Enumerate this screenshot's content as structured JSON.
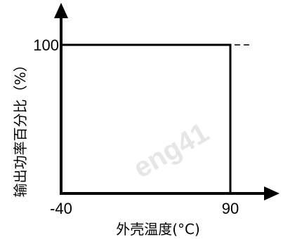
{
  "chart_data": {
    "type": "line",
    "title": "",
    "xlabel": "外壳温度(°C)",
    "ylabel": "输出功率百分比（%）",
    "x_ticks": [
      "-40",
      "90"
    ],
    "y_ticks": [
      "100"
    ],
    "xlim": [
      -40,
      100
    ],
    "ylim": [
      0,
      115
    ],
    "reference_line": {
      "y": 100,
      "style": "dashed"
    },
    "series": [
      {
        "x": [
          -40,
          -40,
          90,
          90
        ],
        "y": [
          0,
          100,
          100,
          0
        ]
      }
    ],
    "grid": false,
    "legend": "none",
    "watermark": "eng41"
  }
}
